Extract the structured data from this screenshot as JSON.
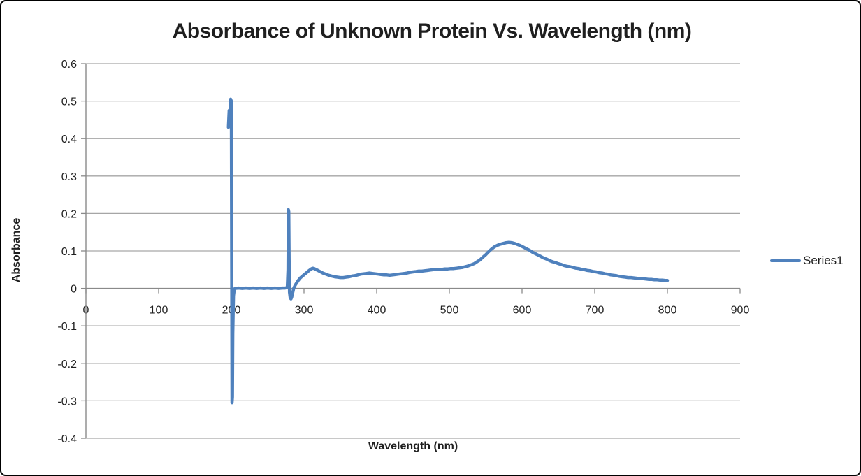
{
  "window": {
    "background": "#FFFFFF",
    "border_color": "#000000"
  },
  "chart_data": {
    "type": "line",
    "title": "Absorbance of Unknown Protein Vs. Wavelength (nm)",
    "xlabel": "Wavelength (nm)",
    "ylabel": "Absorbance",
    "grid": "horizontal",
    "x_axis": {
      "min": 0,
      "max": 900,
      "tick_step": 100,
      "tick_labels": [
        "0",
        "100",
        "200",
        "300",
        "400",
        "500",
        "600",
        "700",
        "800",
        "900"
      ]
    },
    "y_axis": {
      "min": -0.4,
      "max": 0.6,
      "tick_step": 0.1,
      "tick_labels": [
        "0.6",
        "0.5",
        "0.4",
        "0.3",
        "0.2",
        "0.1",
        "0",
        "-0.1",
        "-0.2",
        "-0.3",
        "-0.4"
      ]
    },
    "legend": {
      "position": "right",
      "entries": [
        "Series1"
      ]
    },
    "colors": {
      "gridline": "#A6A6A6",
      "axis": "#8A8A8A",
      "text": "#1F1F1F"
    },
    "series": [
      {
        "name": "Series1",
        "color": "#4F81BD",
        "points": [
          [
            196,
            0.43
          ],
          [
            197,
            0.475
          ],
          [
            198,
            0.47
          ],
          [
            199,
            0.505
          ],
          [
            200,
            0.5
          ],
          [
            200.5,
            0.1
          ],
          [
            201,
            -0.305
          ],
          [
            201.5,
            -0.29
          ],
          [
            202,
            -0.12
          ],
          [
            203,
            -0.02
          ],
          [
            204,
            -0.003
          ],
          [
            205,
            0
          ],
          [
            210,
            0.001
          ],
          [
            215,
            0
          ],
          [
            220,
            0.001
          ],
          [
            225,
            0
          ],
          [
            230,
            0.001
          ],
          [
            235,
            0
          ],
          [
            240,
            0.001
          ],
          [
            245,
            0
          ],
          [
            250,
            0.001
          ],
          [
            255,
            0
          ],
          [
            260,
            0.001
          ],
          [
            265,
            0
          ],
          [
            270,
            0.001
          ],
          [
            274,
            0.001
          ],
          [
            277,
            0.002
          ],
          [
            278,
            0.05
          ],
          [
            278.5,
            0.21
          ],
          [
            279,
            0.205
          ],
          [
            279.5,
            0.08
          ],
          [
            280,
            -0.01
          ],
          [
            281,
            -0.025
          ],
          [
            282,
            -0.028
          ],
          [
            283,
            -0.024
          ],
          [
            284,
            -0.015
          ],
          [
            285,
            -0.007
          ],
          [
            286,
            0.001
          ],
          [
            288,
            0.009
          ],
          [
            290,
            0.015
          ],
          [
            292,
            0.021
          ],
          [
            295,
            0.028
          ],
          [
            298,
            0.033
          ],
          [
            301,
            0.038
          ],
          [
            304,
            0.043
          ],
          [
            307,
            0.048
          ],
          [
            310,
            0.052
          ],
          [
            312,
            0.054
          ],
          [
            314,
            0.053
          ],
          [
            316,
            0.051
          ],
          [
            318,
            0.049
          ],
          [
            320,
            0.047
          ],
          [
            323,
            0.044
          ],
          [
            326,
            0.041
          ],
          [
            330,
            0.038
          ],
          [
            334,
            0.035
          ],
          [
            338,
            0.033
          ],
          [
            342,
            0.031
          ],
          [
            346,
            0.03
          ],
          [
            350,
            0.029
          ],
          [
            354,
            0.029
          ],
          [
            358,
            0.03
          ],
          [
            362,
            0.031
          ],
          [
            366,
            0.033
          ],
          [
            370,
            0.034
          ],
          [
            374,
            0.036
          ],
          [
            378,
            0.038
          ],
          [
            382,
            0.039
          ],
          [
            386,
            0.04
          ],
          [
            390,
            0.041
          ],
          [
            394,
            0.04
          ],
          [
            398,
            0.039
          ],
          [
            402,
            0.038
          ],
          [
            406,
            0.037
          ],
          [
            410,
            0.036
          ],
          [
            414,
            0.036
          ],
          [
            418,
            0.035
          ],
          [
            422,
            0.036
          ],
          [
            426,
            0.037
          ],
          [
            430,
            0.038
          ],
          [
            434,
            0.039
          ],
          [
            438,
            0.04
          ],
          [
            442,
            0.041
          ],
          [
            446,
            0.043
          ],
          [
            450,
            0.044
          ],
          [
            454,
            0.045
          ],
          [
            458,
            0.046
          ],
          [
            462,
            0.046
          ],
          [
            466,
            0.047
          ],
          [
            470,
            0.048
          ],
          [
            474,
            0.049
          ],
          [
            478,
            0.05
          ],
          [
            482,
            0.05
          ],
          [
            486,
            0.051
          ],
          [
            490,
            0.051
          ],
          [
            494,
            0.052
          ],
          [
            498,
            0.052
          ],
          [
            502,
            0.053
          ],
          [
            506,
            0.053
          ],
          [
            510,
            0.054
          ],
          [
            514,
            0.055
          ],
          [
            518,
            0.056
          ],
          [
            522,
            0.058
          ],
          [
            526,
            0.06
          ],
          [
            530,
            0.063
          ],
          [
            534,
            0.066
          ],
          [
            538,
            0.071
          ],
          [
            542,
            0.076
          ],
          [
            546,
            0.083
          ],
          [
            550,
            0.09
          ],
          [
            554,
            0.098
          ],
          [
            558,
            0.105
          ],
          [
            562,
            0.111
          ],
          [
            566,
            0.115
          ],
          [
            570,
            0.118
          ],
          [
            574,
            0.12
          ],
          [
            578,
            0.122
          ],
          [
            582,
            0.123
          ],
          [
            586,
            0.122
          ],
          [
            590,
            0.12
          ],
          [
            594,
            0.117
          ],
          [
            598,
            0.114
          ],
          [
            602,
            0.11
          ],
          [
            606,
            0.106
          ],
          [
            610,
            0.102
          ],
          [
            614,
            0.097
          ],
          [
            618,
            0.093
          ],
          [
            622,
            0.089
          ],
          [
            626,
            0.085
          ],
          [
            630,
            0.081
          ],
          [
            634,
            0.078
          ],
          [
            638,
            0.074
          ],
          [
            642,
            0.071
          ],
          [
            646,
            0.069
          ],
          [
            650,
            0.066
          ],
          [
            654,
            0.064
          ],
          [
            658,
            0.061
          ],
          [
            662,
            0.059
          ],
          [
            666,
            0.058
          ],
          [
            670,
            0.056
          ],
          [
            674,
            0.054
          ],
          [
            678,
            0.053
          ],
          [
            682,
            0.051
          ],
          [
            686,
            0.05
          ],
          [
            690,
            0.048
          ],
          [
            694,
            0.047
          ],
          [
            698,
            0.045
          ],
          [
            702,
            0.044
          ],
          [
            706,
            0.042
          ],
          [
            710,
            0.041
          ],
          [
            714,
            0.039
          ],
          [
            718,
            0.038
          ],
          [
            722,
            0.036
          ],
          [
            726,
            0.035
          ],
          [
            730,
            0.034
          ],
          [
            734,
            0.032
          ],
          [
            738,
            0.031
          ],
          [
            742,
            0.03
          ],
          [
            746,
            0.029
          ],
          [
            750,
            0.029
          ],
          [
            754,
            0.028
          ],
          [
            758,
            0.027
          ],
          [
            762,
            0.026
          ],
          [
            766,
            0.026
          ],
          [
            770,
            0.025
          ],
          [
            774,
            0.024
          ],
          [
            778,
            0.024
          ],
          [
            782,
            0.023
          ],
          [
            786,
            0.023
          ],
          [
            790,
            0.022
          ],
          [
            794,
            0.022
          ],
          [
            798,
            0.021
          ],
          [
            800,
            0.021
          ]
        ]
      }
    ]
  }
}
